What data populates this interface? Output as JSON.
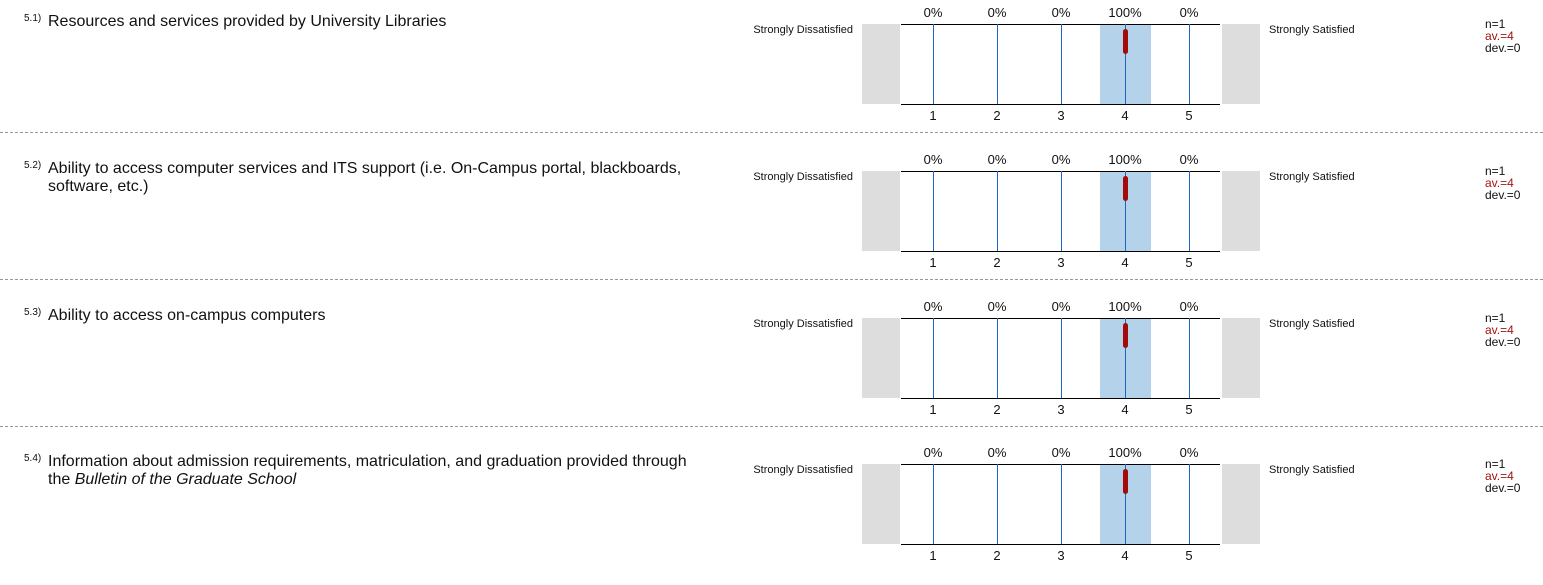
{
  "anchors": {
    "left": "Strongly Dissatisfied",
    "right": "Strongly Satisfied"
  },
  "scale_labels": [
    "1",
    "2",
    "3",
    "4",
    "5"
  ],
  "colors": {
    "highlight": "#b4d3ea",
    "mean_marker": "#a30a0a",
    "tick": "#1a66c4",
    "average_text": "#a11414"
  },
  "questions": [
    {
      "number": "5.1)",
      "text": "Resources and services provided by University Libraries",
      "text_italic": "",
      "percentages": [
        "0%",
        "0%",
        "0%",
        "100%",
        "0%"
      ],
      "n": "n=1",
      "av": "av.=4",
      "dev": "dev.=0"
    },
    {
      "number": "5.2)",
      "text": "Ability to access computer services and ITS support (i.e. On-Campus portal, blackboards, software, etc.)",
      "text_italic": "",
      "percentages": [
        "0%",
        "0%",
        "0%",
        "100%",
        "0%"
      ],
      "n": "n=1",
      "av": "av.=4",
      "dev": "dev.=0"
    },
    {
      "number": "5.3)",
      "text": "Ability to access on-campus computers",
      "text_italic": "",
      "percentages": [
        "0%",
        "0%",
        "0%",
        "100%",
        "0%"
      ],
      "n": "n=1",
      "av": "av.=4",
      "dev": "dev.=0"
    },
    {
      "number": "5.4)",
      "text": "Information about admission requirements, matriculation, and graduation provided through the ",
      "text_italic": "Bulletin of the Graduate School",
      "percentages": [
        "0%",
        "0%",
        "0%",
        "100%",
        "0%"
      ],
      "n": "n=1",
      "av": "av.=4",
      "dev": "dev.=0"
    }
  ]
}
